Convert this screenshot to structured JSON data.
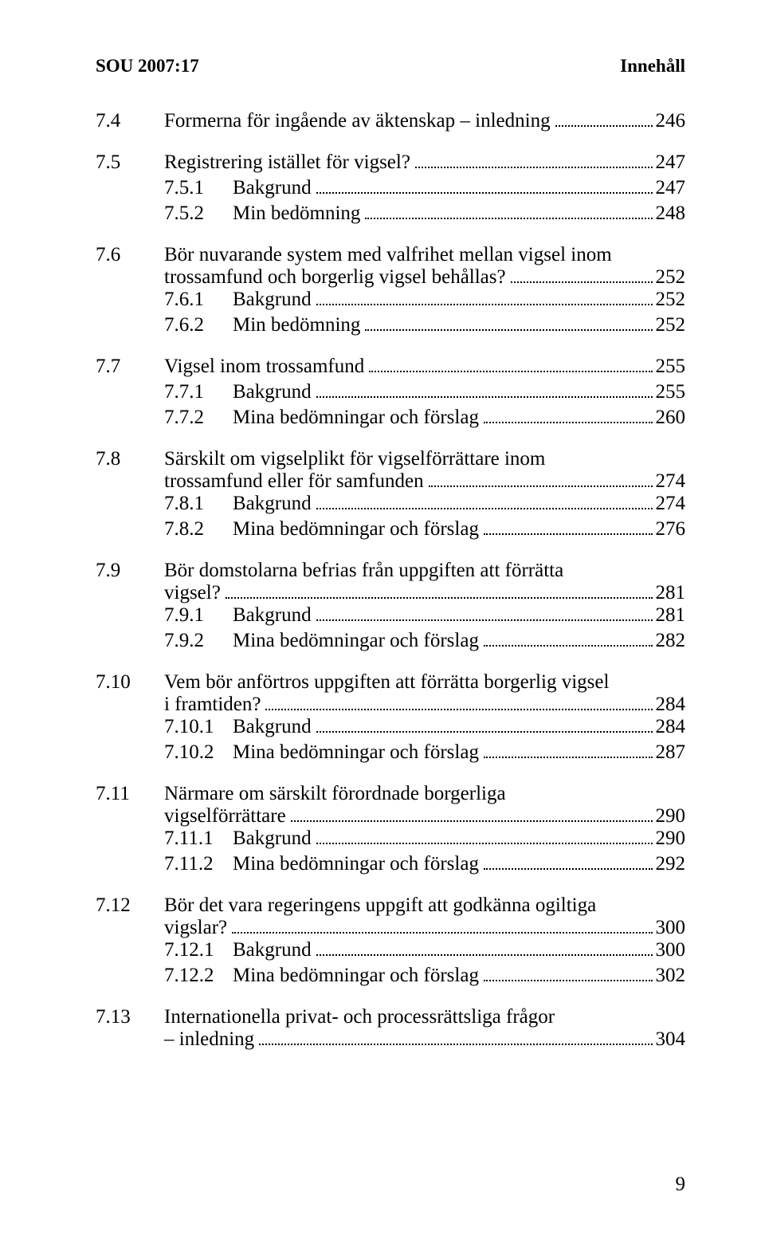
{
  "header": {
    "left": "SOU 2007:17",
    "right": "Innehåll"
  },
  "footer": {
    "page": "9"
  },
  "groups": [
    {
      "entries": [
        {
          "num": "7.4",
          "title": "Formerna för ingående av äktenskap – inledning",
          "page": "246"
        }
      ]
    },
    {
      "entries": [
        {
          "num": "7.5",
          "title": "Registrering istället för vigsel?",
          "page": "247"
        },
        {
          "num": "7.5.1",
          "title": "Bakgrund",
          "page": "247",
          "indent": true
        },
        {
          "num": "7.5.2",
          "title": "Min bedömning",
          "page": "248",
          "indent": true
        }
      ]
    },
    {
      "entries": [
        {
          "num": "7.6",
          "wrap": true,
          "lines": [
            "Bör nuvarande system med valfrihet mellan vigsel inom"
          ],
          "last": "trossamfund och borgerlig vigsel behållas?",
          "page": "252"
        },
        {
          "num": "7.6.1",
          "title": "Bakgrund",
          "page": "252",
          "indent": true
        },
        {
          "num": "7.6.2",
          "title": "Min bedömning",
          "page": "252",
          "indent": true
        }
      ]
    },
    {
      "entries": [
        {
          "num": "7.7",
          "title": "Vigsel inom trossamfund",
          "page": "255"
        },
        {
          "num": "7.7.1",
          "title": "Bakgrund",
          "page": "255",
          "indent": true
        },
        {
          "num": "7.7.2",
          "title": "Mina bedömningar och förslag",
          "page": "260",
          "indent": true
        }
      ]
    },
    {
      "entries": [
        {
          "num": "7.8",
          "wrap": true,
          "lines": [
            "Särskilt om vigselplikt för vigselförrättare inom"
          ],
          "last": "trossamfund eller för samfunden",
          "page": "274"
        },
        {
          "num": "7.8.1",
          "title": "Bakgrund",
          "page": "274",
          "indent": true
        },
        {
          "num": "7.8.2",
          "title": "Mina bedömningar och förslag",
          "page": "276",
          "indent": true
        }
      ]
    },
    {
      "entries": [
        {
          "num": "7.9",
          "wrap": true,
          "lines": [
            "Bör domstolarna befrias från uppgiften att förrätta"
          ],
          "last": "vigsel?",
          "page": "281"
        },
        {
          "num": "7.9.1",
          "title": "Bakgrund",
          "page": "281",
          "indent": true
        },
        {
          "num": "7.9.2",
          "title": "Mina bedömningar och förslag",
          "page": "282",
          "indent": true
        }
      ]
    },
    {
      "entries": [
        {
          "num": "7.10",
          "wrap": true,
          "lines": [
            "Vem bör anförtros uppgiften att förrätta borgerlig vigsel"
          ],
          "last": "i framtiden?",
          "page": "284"
        },
        {
          "num": "7.10.1",
          "title": "Bakgrund",
          "page": "284",
          "indent": true
        },
        {
          "num": "7.10.2",
          "title": "Mina bedömningar och förslag",
          "page": "287",
          "indent": true
        }
      ]
    },
    {
      "entries": [
        {
          "num": "7.11",
          "wrap": true,
          "lines": [
            "Närmare om särskilt förordnade borgerliga"
          ],
          "last": "vigselförrättare",
          "page": "290"
        },
        {
          "num": "7.11.1",
          "title": "Bakgrund",
          "page": "290",
          "indent": true
        },
        {
          "num": "7.11.2",
          "title": "Mina bedömningar och förslag",
          "page": "292",
          "indent": true
        }
      ]
    },
    {
      "entries": [
        {
          "num": "7.12",
          "wrap": true,
          "lines": [
            "Bör det vara regeringens uppgift att godkänna ogiltiga"
          ],
          "last": "vigslar?",
          "page": "300"
        },
        {
          "num": "7.12.1",
          "title": "Bakgrund",
          "page": "300",
          "indent": true
        },
        {
          "num": "7.12.2",
          "title": "Mina bedömningar och förslag",
          "page": "302",
          "indent": true
        }
      ]
    },
    {
      "entries": [
        {
          "num": "7.13",
          "wrap": true,
          "lines": [
            "Internationella privat- och processrättsliga frågor"
          ],
          "last": "– inledning",
          "page": "304"
        }
      ]
    }
  ]
}
